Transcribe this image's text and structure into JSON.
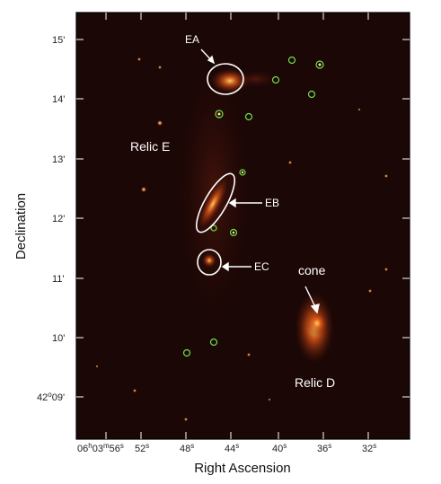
{
  "image": {
    "kind": "radio/X-ray astronomical map of relic emission",
    "colormap": "dark red to yellow (hot)",
    "background_color": "#140505",
    "frame_color": "#000000"
  },
  "axes": {
    "x_title": "Right Ascension",
    "y_title": "Declination",
    "x_ticks": {
      "first": {
        "main": "06",
        "h": "h",
        "mid": "03",
        "m": "m",
        "sec": "56",
        "s": "s"
      },
      "others": [
        "52",
        "48",
        "44",
        "40",
        "36",
        "32"
      ],
      "unit_sup": "s"
    },
    "y_ticks": [
      {
        "label": "15'"
      },
      {
        "label": "14'"
      },
      {
        "label": "13'"
      },
      {
        "label": "12'"
      },
      {
        "label": "11'"
      },
      {
        "label": "10'"
      },
      {
        "label": "42",
        "deg": "o",
        "tail": "09'"
      }
    ]
  },
  "annotations": {
    "ea": "EA",
    "eb": "EB",
    "ec": "EC",
    "relic_e": "Relic E",
    "relic_d": "Relic D",
    "cone": "cone"
  },
  "colors": {
    "ellipse": "#ffffff",
    "source_circle": "#6fe04a",
    "tick": "#ffffff"
  }
}
